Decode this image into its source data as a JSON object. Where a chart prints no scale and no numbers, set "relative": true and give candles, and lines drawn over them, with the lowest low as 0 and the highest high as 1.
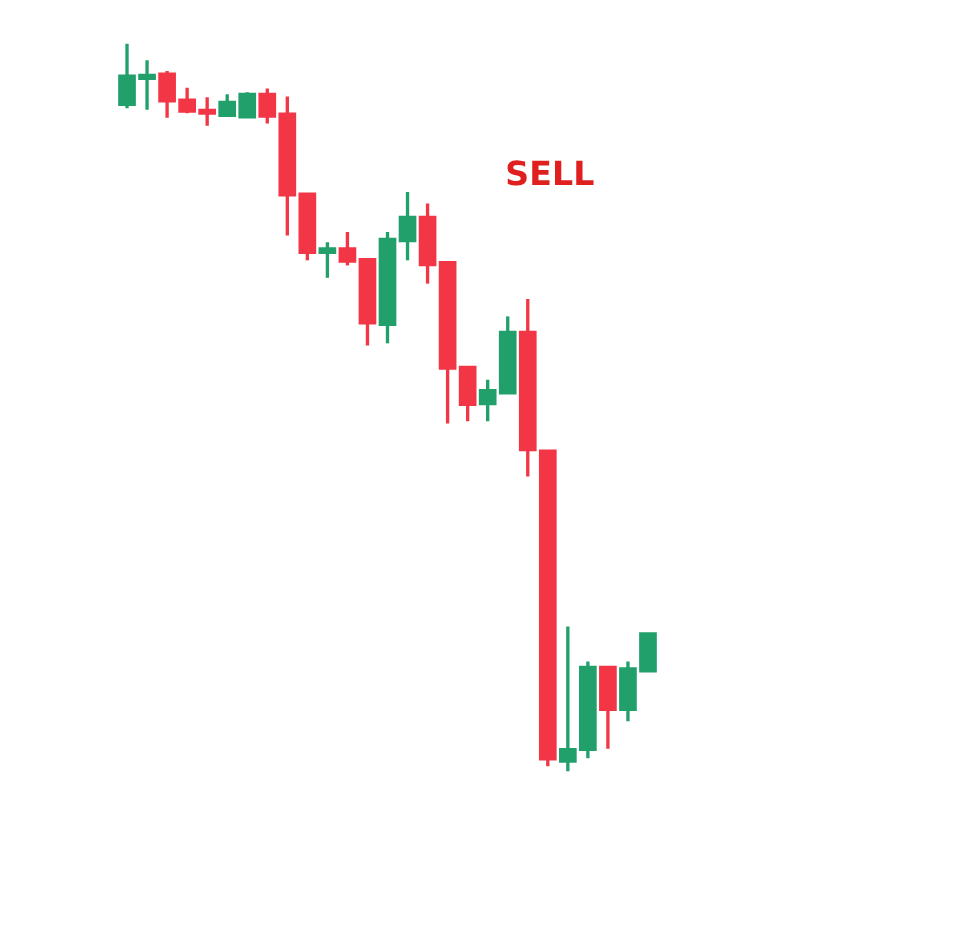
{
  "chart_data": {
    "type": "candlestick",
    "relative": true,
    "categories": [
      null,
      null,
      null,
      null,
      null,
      null,
      null,
      null,
      null,
      null,
      null,
      null,
      null,
      null,
      null,
      null,
      null,
      null,
      null,
      null,
      null,
      null,
      null,
      null,
      null,
      null,
      null
    ],
    "ohlc": [
      [
        0.915,
        1.0,
        0.911,
        0.956
      ],
      [
        0.951,
        0.977,
        0.909,
        0.957
      ],
      [
        0.959,
        0.962,
        0.898,
        0.92
      ],
      [
        0.923,
        0.939,
        0.904,
        0.906
      ],
      [
        0.909,
        0.926,
        0.887,
        0.903
      ],
      [
        0.9,
        0.93,
        0.9,
        0.92
      ],
      [
        0.898,
        0.933,
        0.898,
        0.931
      ],
      [
        0.931,
        0.938,
        0.89,
        0.899
      ],
      [
        0.904,
        0.927,
        0.736,
        0.791
      ],
      [
        0.794,
        0.794,
        0.702,
        0.712
      ],
      [
        0.712,
        0.727,
        0.678,
        0.719
      ],
      [
        0.719,
        0.741,
        0.695,
        0.7
      ],
      [
        0.704,
        0.704,
        0.585,
        0.615
      ],
      [
        0.613,
        0.741,
        0.588,
        0.732
      ],
      [
        0.728,
        0.796,
        0.702,
        0.762
      ],
      [
        0.762,
        0.78,
        0.67,
        0.695
      ],
      [
        0.7,
        0.7,
        0.478,
        0.553
      ],
      [
        0.556,
        0.556,
        0.481,
        0.503
      ],
      [
        0.504,
        0.538,
        0.481,
        0.524
      ],
      [
        0.519,
        0.625,
        0.519,
        0.604
      ],
      [
        0.604,
        0.649,
        0.405,
        0.441
      ],
      [
        0.441,
        0.441,
        0.007,
        0.016
      ],
      [
        0.013,
        0.199,
        0.0,
        0.031
      ],
      [
        0.029,
        0.151,
        0.018,
        0.144
      ],
      [
        0.144,
        0.144,
        0.031,
        0.084
      ],
      [
        0.084,
        0.151,
        0.069,
        0.142
      ],
      [
        0.137,
        0.19,
        0.137,
        0.19
      ]
    ],
    "colors": [
      "#22a06b",
      "#22a06b",
      "#f23645",
      "#f23645",
      "#f23645",
      "#22a06b",
      "#22a06b",
      "#f23645",
      "#f23645",
      "#f23645",
      "#22a06b",
      "#f23645",
      "#f23645",
      "#22a06b",
      "#22a06b",
      "#f23645",
      "#f23645",
      "#f23645",
      "#22a06b",
      "#22a06b",
      "#f23645",
      "#f23645",
      "#22a06b",
      "#22a06b",
      "#f23645",
      "#22a06b",
      "#22a06b"
    ],
    "annotations": [
      "SELL"
    ]
  }
}
